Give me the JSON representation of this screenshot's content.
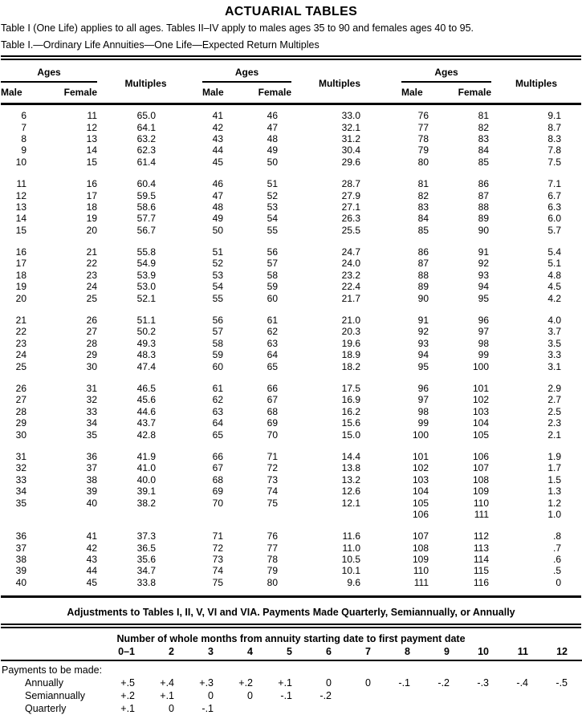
{
  "page": {
    "title": "ACTUARIAL TABLES",
    "intro": "Table I (One Life) applies to all ages. Tables II–IV apply to males ages 35 to 90 and females ages 40 to 95.",
    "caption": "Table I.—Ordinary Life Annuities—One Life—Expected Return Multiples"
  },
  "table1": {
    "headers": {
      "ages": "Ages",
      "male": "Male",
      "female": "Female",
      "multiples": "Multiples"
    },
    "blocks": [
      [
        [
          "6",
          "11",
          "65.0",
          "41",
          "46",
          "33.0",
          "76",
          "81",
          "9.1"
        ],
        [
          "7",
          "12",
          "64.1",
          "42",
          "47",
          "32.1",
          "77",
          "82",
          "8.7"
        ],
        [
          "8",
          "13",
          "63.2",
          "43",
          "48",
          "31.2",
          "78",
          "83",
          "8.3"
        ],
        [
          "9",
          "14",
          "62.3",
          "44",
          "49",
          "30.4",
          "79",
          "84",
          "7.8"
        ],
        [
          "10",
          "15",
          "61.4",
          "45",
          "50",
          "29.6",
          "80",
          "85",
          "7.5"
        ]
      ],
      [
        [
          "11",
          "16",
          "60.4",
          "46",
          "51",
          "28.7",
          "81",
          "86",
          "7.1"
        ],
        [
          "12",
          "17",
          "59.5",
          "47",
          "52",
          "27.9",
          "82",
          "87",
          "6.7"
        ],
        [
          "13",
          "18",
          "58.6",
          "48",
          "53",
          "27.1",
          "83",
          "88",
          "6.3"
        ],
        [
          "14",
          "19",
          "57.7",
          "49",
          "54",
          "26.3",
          "84",
          "89",
          "6.0"
        ],
        [
          "15",
          "20",
          "56.7",
          "50",
          "55",
          "25.5",
          "85",
          "90",
          "5.7"
        ]
      ],
      [
        [
          "16",
          "21",
          "55.8",
          "51",
          "56",
          "24.7",
          "86",
          "91",
          "5.4"
        ],
        [
          "17",
          "22",
          "54.9",
          "52",
          "57",
          "24.0",
          "87",
          "92",
          "5.1"
        ],
        [
          "18",
          "23",
          "53.9",
          "53",
          "58",
          "23.2",
          "88",
          "93",
          "4.8"
        ],
        [
          "19",
          "24",
          "53.0",
          "54",
          "59",
          "22.4",
          "89",
          "94",
          "4.5"
        ],
        [
          "20",
          "25",
          "52.1",
          "55",
          "60",
          "21.7",
          "90",
          "95",
          "4.2"
        ]
      ],
      [
        [
          "21",
          "26",
          "51.1",
          "56",
          "61",
          "21.0",
          "91",
          "96",
          "4.0"
        ],
        [
          "22",
          "27",
          "50.2",
          "57",
          "62",
          "20.3",
          "92",
          "97",
          "3.7"
        ],
        [
          "23",
          "28",
          "49.3",
          "58",
          "63",
          "19.6",
          "93",
          "98",
          "3.5"
        ],
        [
          "24",
          "29",
          "48.3",
          "59",
          "64",
          "18.9",
          "94",
          "99",
          "3.3"
        ],
        [
          "25",
          "30",
          "47.4",
          "60",
          "65",
          "18.2",
          "95",
          "100",
          "3.1"
        ]
      ],
      [
        [
          "26",
          "31",
          "46.5",
          "61",
          "66",
          "17.5",
          "96",
          "101",
          "2.9"
        ],
        [
          "27",
          "32",
          "45.6",
          "62",
          "67",
          "16.9",
          "97",
          "102",
          "2.7"
        ],
        [
          "28",
          "33",
          "44.6",
          "63",
          "68",
          "16.2",
          "98",
          "103",
          "2.5"
        ],
        [
          "29",
          "34",
          "43.7",
          "64",
          "69",
          "15.6",
          "99",
          "104",
          "2.3"
        ],
        [
          "30",
          "35",
          "42.8",
          "65",
          "70",
          "15.0",
          "100",
          "105",
          "2.1"
        ]
      ],
      [
        [
          "31",
          "36",
          "41.9",
          "66",
          "71",
          "14.4",
          "101",
          "106",
          "1.9"
        ],
        [
          "32",
          "37",
          "41.0",
          "67",
          "72",
          "13.8",
          "102",
          "107",
          "1.7"
        ],
        [
          "33",
          "38",
          "40.0",
          "68",
          "73",
          "13.2",
          "103",
          "108",
          "1.5"
        ],
        [
          "34",
          "39",
          "39.1",
          "69",
          "74",
          "12.6",
          "104",
          "109",
          "1.3"
        ],
        [
          "35",
          "40",
          "38.2",
          "70",
          "75",
          "12.1",
          "105",
          "110",
          "1.2"
        ],
        [
          "",
          "",
          "",
          "",
          "",
          "",
          "106",
          "111",
          "1.0"
        ]
      ],
      [
        [
          "36",
          "41",
          "37.3",
          "71",
          "76",
          "11.6",
          "107",
          "112",
          ".8"
        ],
        [
          "37",
          "42",
          "36.5",
          "72",
          "77",
          "11.0",
          "108",
          "113",
          ".7"
        ],
        [
          "38",
          "43",
          "35.6",
          "73",
          "78",
          "10.5",
          "109",
          "114",
          ".6"
        ],
        [
          "39",
          "44",
          "34.7",
          "74",
          "79",
          "10.1",
          "110",
          "115",
          ".5"
        ],
        [
          "40",
          "45",
          "33.8",
          "75",
          "80",
          "9.6",
          "111",
          "116",
          "0"
        ]
      ]
    ]
  },
  "adjustments": {
    "title": "Adjustments to Tables I, II, V, VI and VIA. Payments Made Quarterly, Semiannually, or Annually",
    "months_caption": "Number of whole months from annuity starting date to first payment date",
    "months": [
      "0–1",
      "2",
      "3",
      "4",
      "5",
      "6",
      "7",
      "8",
      "9",
      "10",
      "11",
      "12"
    ],
    "payments_label": "Payments to be made:",
    "rows": [
      {
        "label": "Annually",
        "values": [
          "+.5",
          "+.4",
          "+.3",
          "+.2",
          "+.1",
          "0",
          "0",
          "-.1",
          "-.2",
          "-.3",
          "-.4",
          "-.5"
        ]
      },
      {
        "label": "Semiannually",
        "values": [
          "+.2",
          "+.1",
          "0",
          "0",
          "-.1",
          "-.2",
          "",
          "",
          "",
          "",
          "",
          ""
        ]
      },
      {
        "label": "Quarterly",
        "values": [
          "+.1",
          "0",
          "-.1",
          "",
          "",
          "",
          "",
          "",
          "",
          "",
          "",
          ""
        ]
      }
    ]
  }
}
